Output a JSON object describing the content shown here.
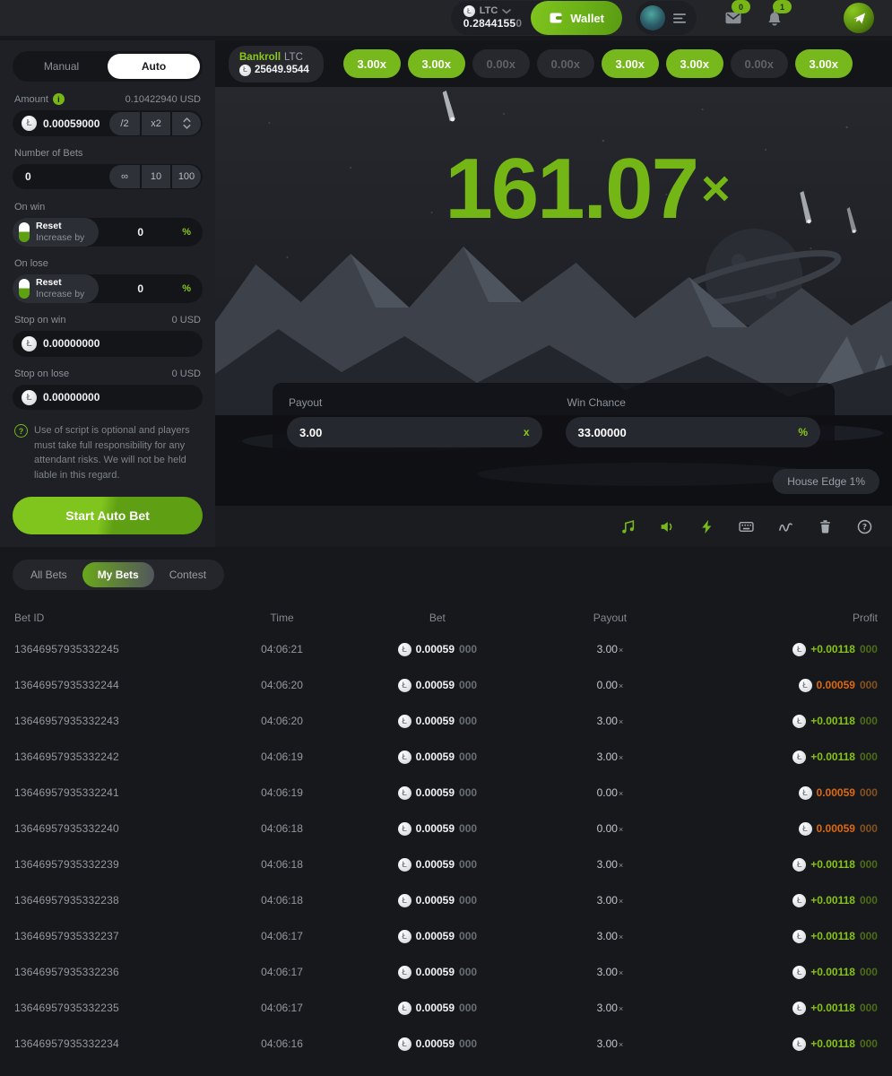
{
  "header": {
    "currency": {
      "code": "LTC",
      "balance_main": "0.2844155",
      "balance_dim": "0"
    },
    "wallet_label": "Wallet",
    "mail_badge": "0",
    "bell_badge": "1"
  },
  "sidebar": {
    "tabs": {
      "manual": "Manual",
      "auto": "Auto"
    },
    "amount": {
      "label": "Amount",
      "usd": "0.10422940 USD",
      "value": "0.00059000",
      "half": "/2",
      "double": "x2"
    },
    "num_bets": {
      "label": "Number of Bets",
      "value": "0",
      "opt_inf": "∞",
      "opt_10": "10",
      "opt_100": "100"
    },
    "on_win": {
      "label": "On win",
      "reset": "Reset",
      "increase": "Increase by",
      "value": "0",
      "unit": "%"
    },
    "on_lose": {
      "label": "On lose",
      "reset": "Reset",
      "increase": "Increase by",
      "value": "0",
      "unit": "%"
    },
    "stop_win": {
      "label": "Stop on win",
      "usd": "0 USD",
      "value": "0.00000000"
    },
    "stop_lose": {
      "label": "Stop on lose",
      "usd": "0 USD",
      "value": "0.00000000"
    },
    "script_note": "Use of script is optional and players must take full responsibility for any attendant risks. We will not be held liable in this regard.",
    "start_button": "Start Auto Bet"
  },
  "game": {
    "bankroll": {
      "label": "Bankroll",
      "currency": "LTC",
      "value": "25649.9544"
    },
    "multipliers": [
      {
        "label": "3.00x",
        "active": true
      },
      {
        "label": "3.00x",
        "active": true
      },
      {
        "label": "0.00x",
        "active": false
      },
      {
        "label": "0.00x",
        "active": false
      },
      {
        "label": "3.00x",
        "active": true
      },
      {
        "label": "3.00x",
        "active": true
      },
      {
        "label": "0.00x",
        "active": false
      },
      {
        "label": "3.00x",
        "active": true
      }
    ],
    "result": {
      "value": "161.07",
      "suffix": "×"
    },
    "payout": {
      "label": "Payout",
      "value": "3.00",
      "clear": "x"
    },
    "win_chance": {
      "label": "Win Chance",
      "value": "33.00000",
      "unit": "%"
    },
    "house_edge": "House Edge 1%",
    "toolbar": [
      {
        "name": "music",
        "active": true
      },
      {
        "name": "sound",
        "active": true
      },
      {
        "name": "turbo",
        "active": true
      },
      {
        "name": "hotkeys",
        "active": false
      },
      {
        "name": "stats",
        "active": false
      },
      {
        "name": "clear",
        "active": false
      },
      {
        "name": "help",
        "active": false
      }
    ]
  },
  "bets": {
    "tabs": {
      "all": "All Bets",
      "my": "My Bets",
      "contest": "Contest"
    },
    "columns": {
      "id": "Bet ID",
      "time": "Time",
      "bet": "Bet",
      "payout": "Payout",
      "profit": "Profit"
    },
    "rows": [
      {
        "id": "13646957935332245",
        "time": "04:06:21",
        "bet_main": "0.00059",
        "bet_dim": "000",
        "payout": "3.00",
        "payout_x": "×",
        "profit_main": "+0.00118",
        "profit_dim": "000",
        "win": true
      },
      {
        "id": "13646957935332244",
        "time": "04:06:20",
        "bet_main": "0.00059",
        "bet_dim": "000",
        "payout": "0.00",
        "payout_x": "×",
        "profit_main": "0.00059",
        "profit_dim": "000",
        "win": false
      },
      {
        "id": "13646957935332243",
        "time": "04:06:20",
        "bet_main": "0.00059",
        "bet_dim": "000",
        "payout": "3.00",
        "payout_x": "×",
        "profit_main": "+0.00118",
        "profit_dim": "000",
        "win": true
      },
      {
        "id": "13646957935332242",
        "time": "04:06:19",
        "bet_main": "0.00059",
        "bet_dim": "000",
        "payout": "3.00",
        "payout_x": "×",
        "profit_main": "+0.00118",
        "profit_dim": "000",
        "win": true
      },
      {
        "id": "13646957935332241",
        "time": "04:06:19",
        "bet_main": "0.00059",
        "bet_dim": "000",
        "payout": "0.00",
        "payout_x": "×",
        "profit_main": "0.00059",
        "profit_dim": "000",
        "win": false
      },
      {
        "id": "13646957935332240",
        "time": "04:06:18",
        "bet_main": "0.00059",
        "bet_dim": "000",
        "payout": "0.00",
        "payout_x": "×",
        "profit_main": "0.00059",
        "profit_dim": "000",
        "win": false
      },
      {
        "id": "13646957935332239",
        "time": "04:06:18",
        "bet_main": "0.00059",
        "bet_dim": "000",
        "payout": "3.00",
        "payout_x": "×",
        "profit_main": "+0.00118",
        "profit_dim": "000",
        "win": true
      },
      {
        "id": "13646957935332238",
        "time": "04:06:18",
        "bet_main": "0.00059",
        "bet_dim": "000",
        "payout": "3.00",
        "payout_x": "×",
        "profit_main": "+0.00118",
        "profit_dim": "000",
        "win": true
      },
      {
        "id": "13646957935332237",
        "time": "04:06:17",
        "bet_main": "0.00059",
        "bet_dim": "000",
        "payout": "3.00",
        "payout_x": "×",
        "profit_main": "+0.00118",
        "profit_dim": "000",
        "win": true
      },
      {
        "id": "13646957935332236",
        "time": "04:06:17",
        "bet_main": "0.00059",
        "bet_dim": "000",
        "payout": "3.00",
        "payout_x": "×",
        "profit_main": "+0.00118",
        "profit_dim": "000",
        "win": true
      },
      {
        "id": "13646957935332235",
        "time": "04:06:17",
        "bet_main": "0.00059",
        "bet_dim": "000",
        "payout": "3.00",
        "payout_x": "×",
        "profit_main": "+0.00118",
        "profit_dim": "000",
        "win": true
      },
      {
        "id": "13646957935332234",
        "time": "04:06:16",
        "bet_main": "0.00059",
        "bet_dim": "000",
        "payout": "3.00",
        "payout_x": "×",
        "profit_main": "+0.00118",
        "profit_dim": "000",
        "win": true
      }
    ]
  },
  "colors": {
    "accent_green": "#77b616",
    "bright_green": "#8bc916",
    "loss_orange": "#de690e",
    "panel_dark": "#1e2025",
    "page_bg": "#17181c"
  }
}
